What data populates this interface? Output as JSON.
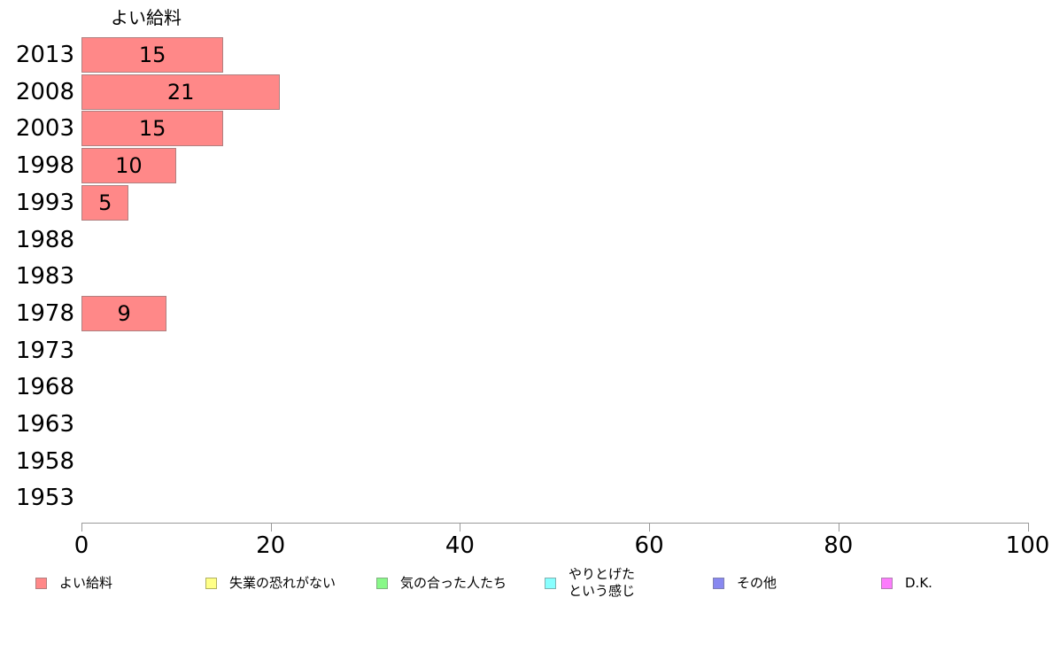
{
  "chart_data": {
    "type": "bar",
    "orientation": "horizontal",
    "title": "よい給料",
    "categories": [
      "2013",
      "2008",
      "2003",
      "1998",
      "1993",
      "1988",
      "1983",
      "1978",
      "1973",
      "1968",
      "1963",
      "1958",
      "1953"
    ],
    "values": [
      15,
      21,
      15,
      10,
      5,
      null,
      null,
      9,
      null,
      null,
      null,
      null,
      null
    ],
    "bar_color": "#ff8888",
    "bar_border_color": "#b08080",
    "xlabel": "",
    "ylabel": "",
    "xlim": [
      0,
      100
    ],
    "x_ticks": [
      0,
      20,
      40,
      60,
      80,
      100
    ],
    "grid": false,
    "value_labels_shown": true,
    "axis_color": "#999999",
    "legend_position": "bottom",
    "legend": [
      {
        "label": "よい給料",
        "color": "#ff8888",
        "border": "#b08080"
      },
      {
        "label": "失業の恐れがない",
        "color": "#ffff88",
        "border": "#b0b060"
      },
      {
        "label": "気の合った人たち",
        "color": "#88f888",
        "border": "#80b080"
      },
      {
        "label": "やりとげた\nという感じ",
        "color": "#88ffff",
        "border": "#80b0b0"
      },
      {
        "label": "その他",
        "color": "#8888f0",
        "border": "#8080b0"
      },
      {
        "label": "D.K.",
        "color": "#fc7cfc",
        "border": "#b080b0"
      }
    ]
  }
}
